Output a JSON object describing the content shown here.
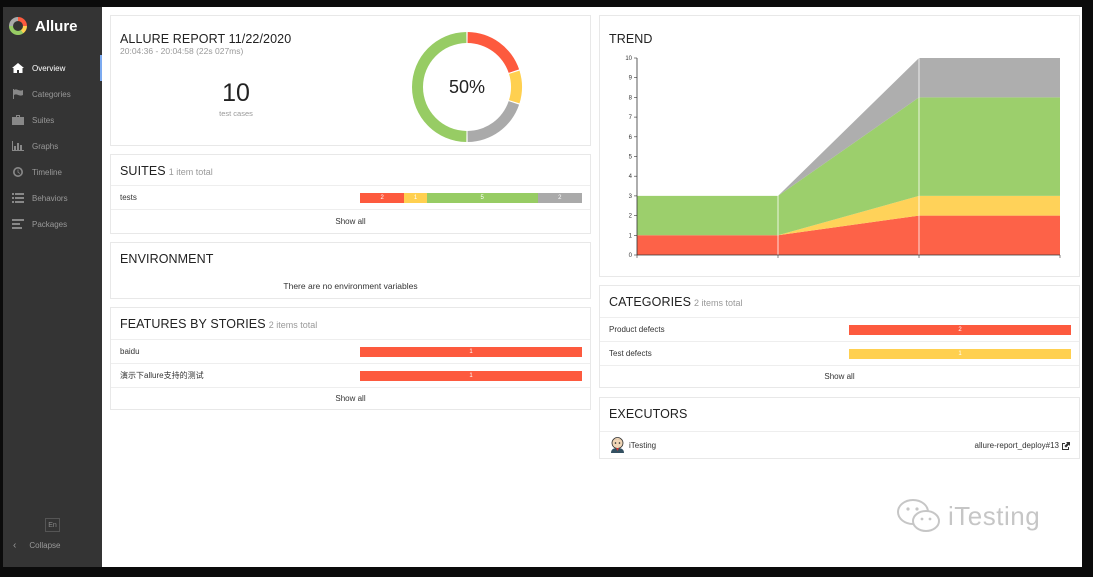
{
  "app": {
    "name": "Allure"
  },
  "sidebar": {
    "items": [
      {
        "label": "Overview",
        "icon": "home-icon",
        "active": true
      },
      {
        "label": "Categories",
        "icon": "flag-icon"
      },
      {
        "label": "Suites",
        "icon": "briefcase-icon"
      },
      {
        "label": "Graphs",
        "icon": "bar-chart-icon"
      },
      {
        "label": "Timeline",
        "icon": "clock-icon"
      },
      {
        "label": "Behaviors",
        "icon": "list-icon"
      },
      {
        "label": "Packages",
        "icon": "align-left-icon"
      }
    ],
    "language": "En",
    "collapse_label": "Collapse"
  },
  "summary": {
    "title": "ALLURE REPORT 11/22/2020",
    "times": "20:04:36 - 20:04:58 (22s 027ms)",
    "total": "10",
    "total_label": "test cases",
    "percent": "50%",
    "donut": [
      {
        "status": "failed",
        "value": 2,
        "color": "#fd5a3e"
      },
      {
        "status": "broken",
        "value": 1,
        "color": "#ffd050"
      },
      {
        "status": "skipped",
        "value": 2,
        "color": "#aaaaaa"
      },
      {
        "status": "passed",
        "value": 5,
        "color": "#97cc64"
      }
    ]
  },
  "suites": {
    "title": "SUITES",
    "subtitle": "1 item total",
    "rows": [
      {
        "name": "tests",
        "segments": [
          {
            "value": 2,
            "label": "2",
            "color": "#fd5a3e"
          },
          {
            "value": 1,
            "label": "1",
            "color": "#ffd050"
          },
          {
            "value": 5,
            "label": "5",
            "color": "#97cc64"
          },
          {
            "value": 2,
            "label": "2",
            "color": "#aaaaaa"
          }
        ]
      }
    ],
    "show_all": "Show all"
  },
  "environment": {
    "title": "ENVIRONMENT",
    "message": "There are no environment variables"
  },
  "features": {
    "title": "FEATURES BY STORIES",
    "subtitle": "2 items total",
    "rows": [
      {
        "name": "baidu",
        "segments": [
          {
            "value": 1,
            "label": "1",
            "color": "#fd5a3e"
          }
        ]
      },
      {
        "name": "演示下allure支持的测试",
        "segments": [
          {
            "value": 1,
            "label": "1",
            "color": "#fd5a3e"
          }
        ]
      }
    ],
    "show_all": "Show all"
  },
  "trend": {
    "title": "TREND"
  },
  "chart_data": {
    "type": "area",
    "title": "TREND",
    "x": [
      "",
      "",
      "",
      ""
    ],
    "series": [
      {
        "values": [
          1,
          1,
          2,
          2
        ],
        "color": "#fd5a3e"
      },
      {
        "values": [
          0,
          0,
          1,
          1
        ],
        "color": "#ffd050"
      },
      {
        "values": [
          2,
          2,
          5,
          5
        ],
        "color": "#97cc64"
      },
      {
        "values": [
          0,
          0,
          2,
          2
        ],
        "color": "#aaaaaa"
      }
    ],
    "stacked": true,
    "ylim": [
      0,
      10
    ],
    "yticks": [
      "0",
      "1",
      "2",
      "3",
      "4",
      "5",
      "6",
      "7",
      "8",
      "9",
      "10"
    ],
    "grid": true
  },
  "categories": {
    "title": "CATEGORIES",
    "subtitle": "2 items total",
    "rows": [
      {
        "name": "Product defects",
        "segments": [
          {
            "value": 2,
            "label": "2",
            "color": "#fd5a3e"
          }
        ]
      },
      {
        "name": "Test defects",
        "segments": [
          {
            "value": 1,
            "label": "1",
            "color": "#ffd050"
          }
        ]
      }
    ],
    "show_all": "Show all"
  },
  "executors": {
    "title": "EXECUTORS",
    "name": "iTesting",
    "link": "allure-report_deploy#13"
  },
  "watermark": {
    "text": "iTesting"
  }
}
